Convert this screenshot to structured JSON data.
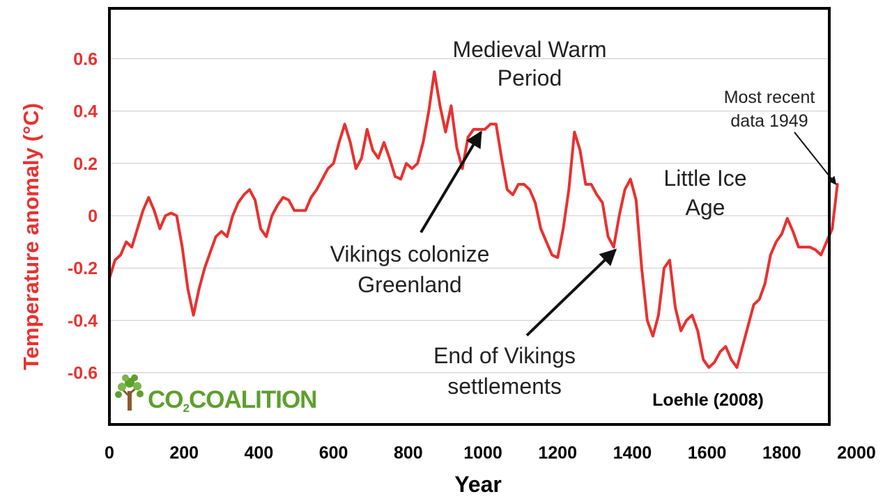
{
  "chart_data": {
    "type": "line",
    "title": "",
    "xlabel": "Year",
    "ylabel": "Temperature anomaly (°C)",
    "xlim": [
      0,
      2000
    ],
    "ylim": [
      -0.8,
      0.8
    ],
    "x_ticks": [
      0,
      200,
      400,
      600,
      800,
      1000,
      1200,
      1400,
      1600,
      1800,
      2000
    ],
    "y_ticks": [
      0.6,
      0.4,
      0.2,
      0,
      -0.2,
      -0.4,
      -0.6
    ],
    "y_tick_labels": [
      "0.6",
      "0.4",
      "0.2",
      "0",
      "-0.2",
      "-0.4",
      "-0.6"
    ],
    "grid": "horizontal",
    "line_color": "#e8312f",
    "series": [
      {
        "x": [
          0,
          15,
          30,
          45,
          60,
          75,
          90,
          105,
          120,
          135,
          150,
          165,
          180,
          195,
          210,
          225,
          240,
          255,
          270,
          285,
          300,
          315,
          330,
          345,
          360,
          375,
          390,
          405,
          420,
          435,
          450,
          465,
          480,
          495,
          510,
          525,
          540,
          555,
          570,
          585,
          600,
          615,
          630,
          645,
          660,
          675,
          690,
          705,
          720,
          735,
          750,
          765,
          780,
          795,
          810,
          825,
          840,
          855,
          870,
          885,
          900,
          915,
          930,
          945,
          960,
          975,
          990,
          1005,
          1020,
          1035,
          1050,
          1065,
          1080,
          1095,
          1110,
          1125,
          1140,
          1155,
          1170,
          1185,
          1200,
          1215,
          1230,
          1245,
          1260,
          1275,
          1290,
          1305,
          1320,
          1335,
          1350,
          1365,
          1380,
          1395,
          1410,
          1425,
          1440,
          1455,
          1470,
          1485,
          1500,
          1515,
          1530,
          1545,
          1560,
          1575,
          1590,
          1605,
          1620,
          1635,
          1650,
          1665,
          1680,
          1695,
          1710,
          1725,
          1740,
          1755,
          1770,
          1785,
          1800,
          1815,
          1830,
          1845,
          1860,
          1875,
          1890,
          1905,
          1920,
          1935,
          1949
        ],
        "values": [
          -0.24,
          -0.17,
          -0.15,
          -0.1,
          -0.12,
          -0.05,
          0.02,
          0.07,
          0.02,
          -0.05,
          0.0,
          0.01,
          0.0,
          -0.12,
          -0.28,
          -0.38,
          -0.28,
          -0.2,
          -0.14,
          -0.08,
          -0.06,
          -0.08,
          0.0,
          0.05,
          0.08,
          0.1,
          0.06,
          -0.05,
          -0.08,
          0.0,
          0.04,
          0.07,
          0.06,
          0.02,
          0.02,
          0.02,
          0.07,
          0.1,
          0.14,
          0.18,
          0.2,
          0.28,
          0.35,
          0.28,
          0.18,
          0.22,
          0.33,
          0.25,
          0.22,
          0.28,
          0.22,
          0.15,
          0.14,
          0.2,
          0.18,
          0.2,
          0.28,
          0.4,
          0.55,
          0.42,
          0.32,
          0.42,
          0.26,
          0.18,
          0.3,
          0.33,
          0.33,
          0.33,
          0.35,
          0.35,
          0.22,
          0.1,
          0.08,
          0.12,
          0.12,
          0.1,
          0.05,
          -0.05,
          -0.1,
          -0.15,
          -0.16,
          -0.05,
          0.1,
          0.32,
          0.25,
          0.12,
          0.12,
          0.08,
          0.05,
          -0.08,
          -0.12,
          0.0,
          0.1,
          0.14,
          0.06,
          -0.2,
          -0.4,
          -0.46,
          -0.38,
          -0.2,
          -0.17,
          -0.35,
          -0.44,
          -0.4,
          -0.38,
          -0.44,
          -0.55,
          -0.58,
          -0.56,
          -0.52,
          -0.5,
          -0.55,
          -0.58,
          -0.5,
          -0.42,
          -0.34,
          -0.32,
          -0.26,
          -0.15,
          -0.1,
          -0.07,
          -0.01,
          -0.06,
          -0.12,
          -0.12,
          -0.12,
          -0.13,
          -0.15,
          -0.1,
          -0.05,
          0.12
        ]
      }
    ],
    "annotations": [
      {
        "lines": [
          "Medieval Warm",
          "Period"
        ]
      },
      {
        "lines": [
          "Vikings colonize",
          "Greenland"
        ],
        "arrow_to": [
          995,
          0.32
        ]
      },
      {
        "lines": [
          "Little Ice",
          "Age"
        ]
      },
      {
        "lines": [
          "End of Vikings",
          "settlements"
        ],
        "arrow_to": [
          1355,
          -0.13
        ]
      },
      {
        "lines": [
          "Most recent",
          "data 1949"
        ],
        "arrow_to": [
          1945,
          0.12
        ]
      }
    ],
    "source_label": "Loehle (2008)"
  },
  "logo": {
    "text_left": "CO",
    "text_sub": "2",
    "text_right": "COALITION",
    "icon": "tree-icon",
    "color": "#5d9f2e"
  }
}
